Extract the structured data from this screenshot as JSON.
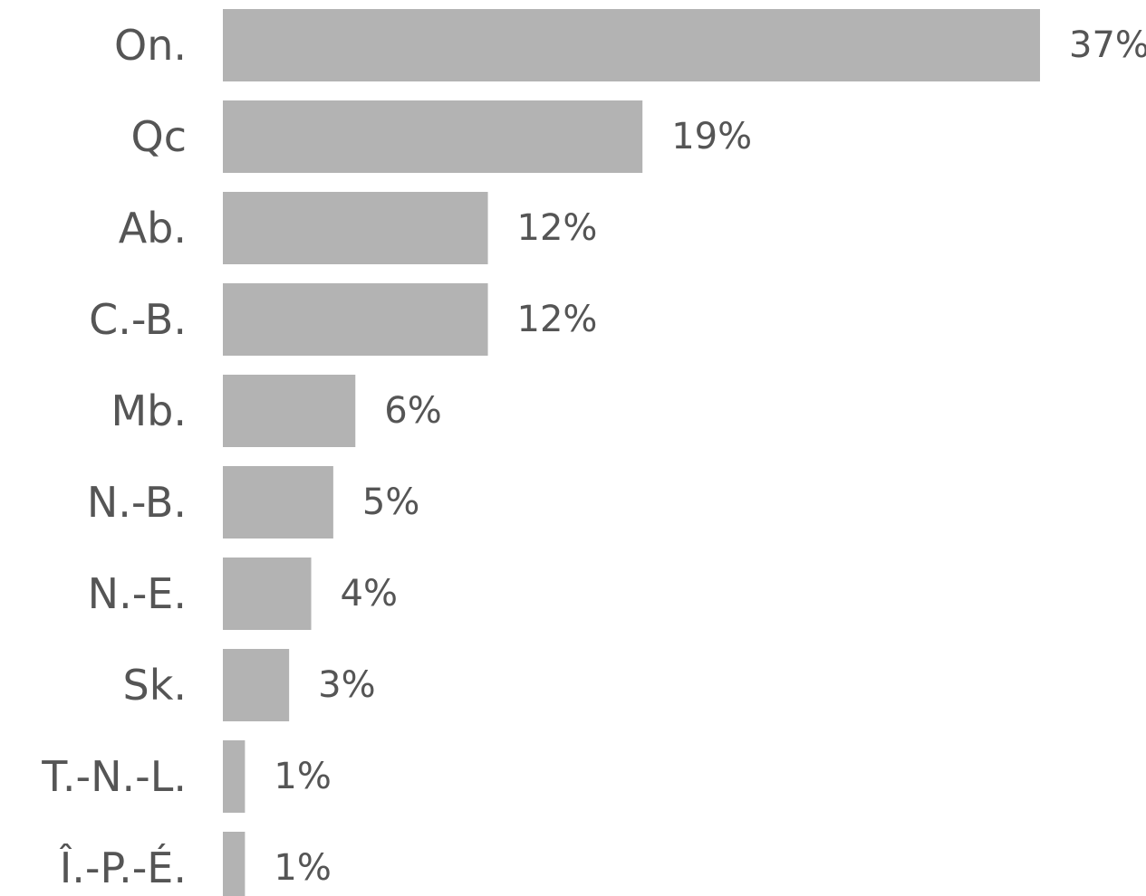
{
  "chart_data": {
    "type": "bar",
    "orientation": "horizontal",
    "categories": [
      "On.",
      "Qc",
      "Ab.",
      "C.-B.",
      "Mb.",
      "N.-B.",
      "N.-E.",
      "Sk.",
      "T.-N.-L.",
      "Î.-P.-É."
    ],
    "values": [
      37,
      19,
      12,
      12,
      6,
      5,
      4,
      3,
      1,
      1
    ],
    "value_labels": [
      "37%",
      "19%",
      "12%",
      "12%",
      "6%",
      "5%",
      "4%",
      "3%",
      "1%",
      "1%"
    ],
    "bar_color": "#b3b3b3",
    "text_color": "#555555",
    "xlim": [
      0,
      37
    ],
    "grid": false,
    "legend": "none",
    "title": "",
    "xlabel": "",
    "ylabel": ""
  }
}
